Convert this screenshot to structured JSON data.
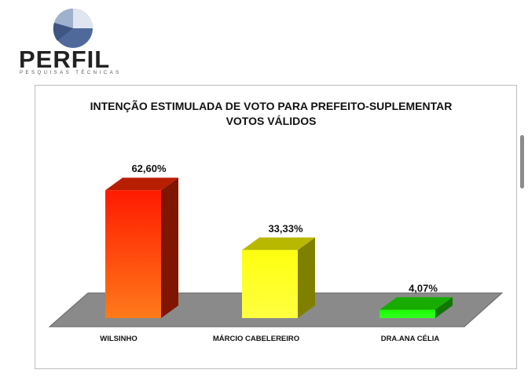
{
  "brand": {
    "name": "PERFIL",
    "tagline": "PESQUISAS TÉCNICAS"
  },
  "chart_data": {
    "type": "bar",
    "title": "INTENÇÃO ESTIMULADA DE VOTO PARA PREFEITO-SUPLEMENTAR",
    "subtitle": "VOTOS VÁLIDOS",
    "categories": [
      "WILSINHO",
      "MÁRCIO CABELEREIRO",
      "DRA.ANA CÉLIA"
    ],
    "values": [
      62.6,
      33.33,
      4.07
    ],
    "value_labels": [
      "62,60%",
      "33,33%",
      "4,07%"
    ],
    "colors": [
      "#ff2a00",
      "#ffff00",
      "#22ee00"
    ],
    "ylim": [
      0,
      70
    ],
    "grid": false,
    "legend": "none",
    "style": "3d-bars"
  }
}
